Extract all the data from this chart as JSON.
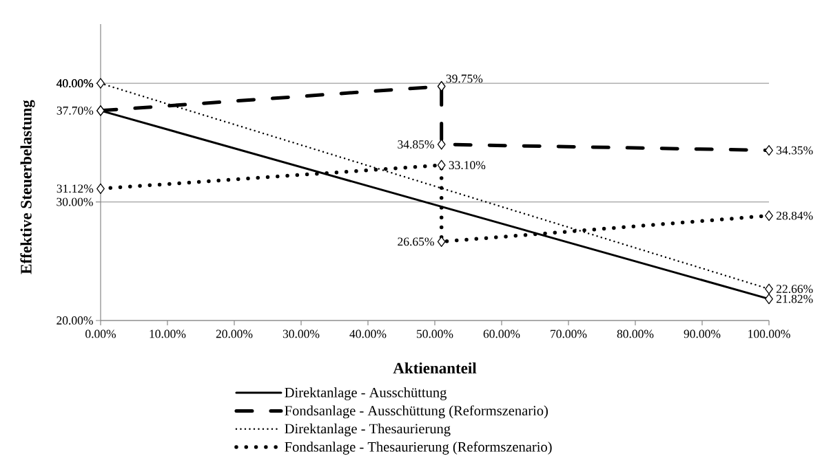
{
  "chart_data": {
    "type": "line",
    "xlabel": "Aktienanteil",
    "ylabel": "Effektive Steuerbelastung",
    "xlim": [
      0,
      100
    ],
    "ylim": [
      20,
      45
    ],
    "xticks": [
      {
        "value": 0,
        "label": "0.00%"
      },
      {
        "value": 10,
        "label": "10.00%"
      },
      {
        "value": 20,
        "label": "20.00%"
      },
      {
        "value": 30,
        "label": "30.00%"
      },
      {
        "value": 40,
        "label": "40.00%"
      },
      {
        "value": 50,
        "label": "50.00%"
      },
      {
        "value": 60,
        "label": "60.00%"
      },
      {
        "value": 70,
        "label": "70.00%"
      },
      {
        "value": 80,
        "label": "80.00%"
      },
      {
        "value": 90,
        "label": "90.00%"
      },
      {
        "value": 100,
        "label": "100.00%"
      }
    ],
    "yticks": [
      {
        "value": 20,
        "label": "20.00%"
      },
      {
        "value": 30,
        "label": "30.00%"
      },
      {
        "value": 40,
        "label": "40.00%"
      }
    ],
    "grid": "y",
    "legend": "bottom",
    "marker": "diamond",
    "series": [
      {
        "name": "Direktanlage - Ausschüttung",
        "color": "#000000",
        "line_style": "solid",
        "x": [
          0,
          100
        ],
        "values": [
          37.7,
          21.82
        ],
        "value_labels": [
          "37.70%",
          "21.82%"
        ]
      },
      {
        "name": "Fondsanlage - Ausschüttung (Reformszenario)",
        "color": "#000000",
        "line_style": "dashed",
        "x": [
          0,
          51,
          51,
          100
        ],
        "values": [
          37.7,
          39.75,
          34.85,
          34.35
        ],
        "value_labels": [
          null,
          "39.75%",
          "34.85%",
          "34.35%"
        ]
      },
      {
        "name": "Direktanlage - Thesaurierung",
        "color": "#000000",
        "line_style": "dotted",
        "x": [
          0,
          100
        ],
        "values": [
          40.0,
          22.66
        ],
        "value_labels": [
          "40.00%",
          "22.66%"
        ]
      },
      {
        "name": "Fondsanlage - Thesaurierung (Reformszenario)",
        "color": "#000000",
        "line_style": "dotted",
        "x": [
          0,
          51,
          51,
          100
        ],
        "values": [
          31.12,
          33.1,
          26.65,
          28.84
        ],
        "value_labels": [
          "31.12%",
          "33.10%",
          "26.65%",
          "28.84%"
        ]
      }
    ]
  }
}
